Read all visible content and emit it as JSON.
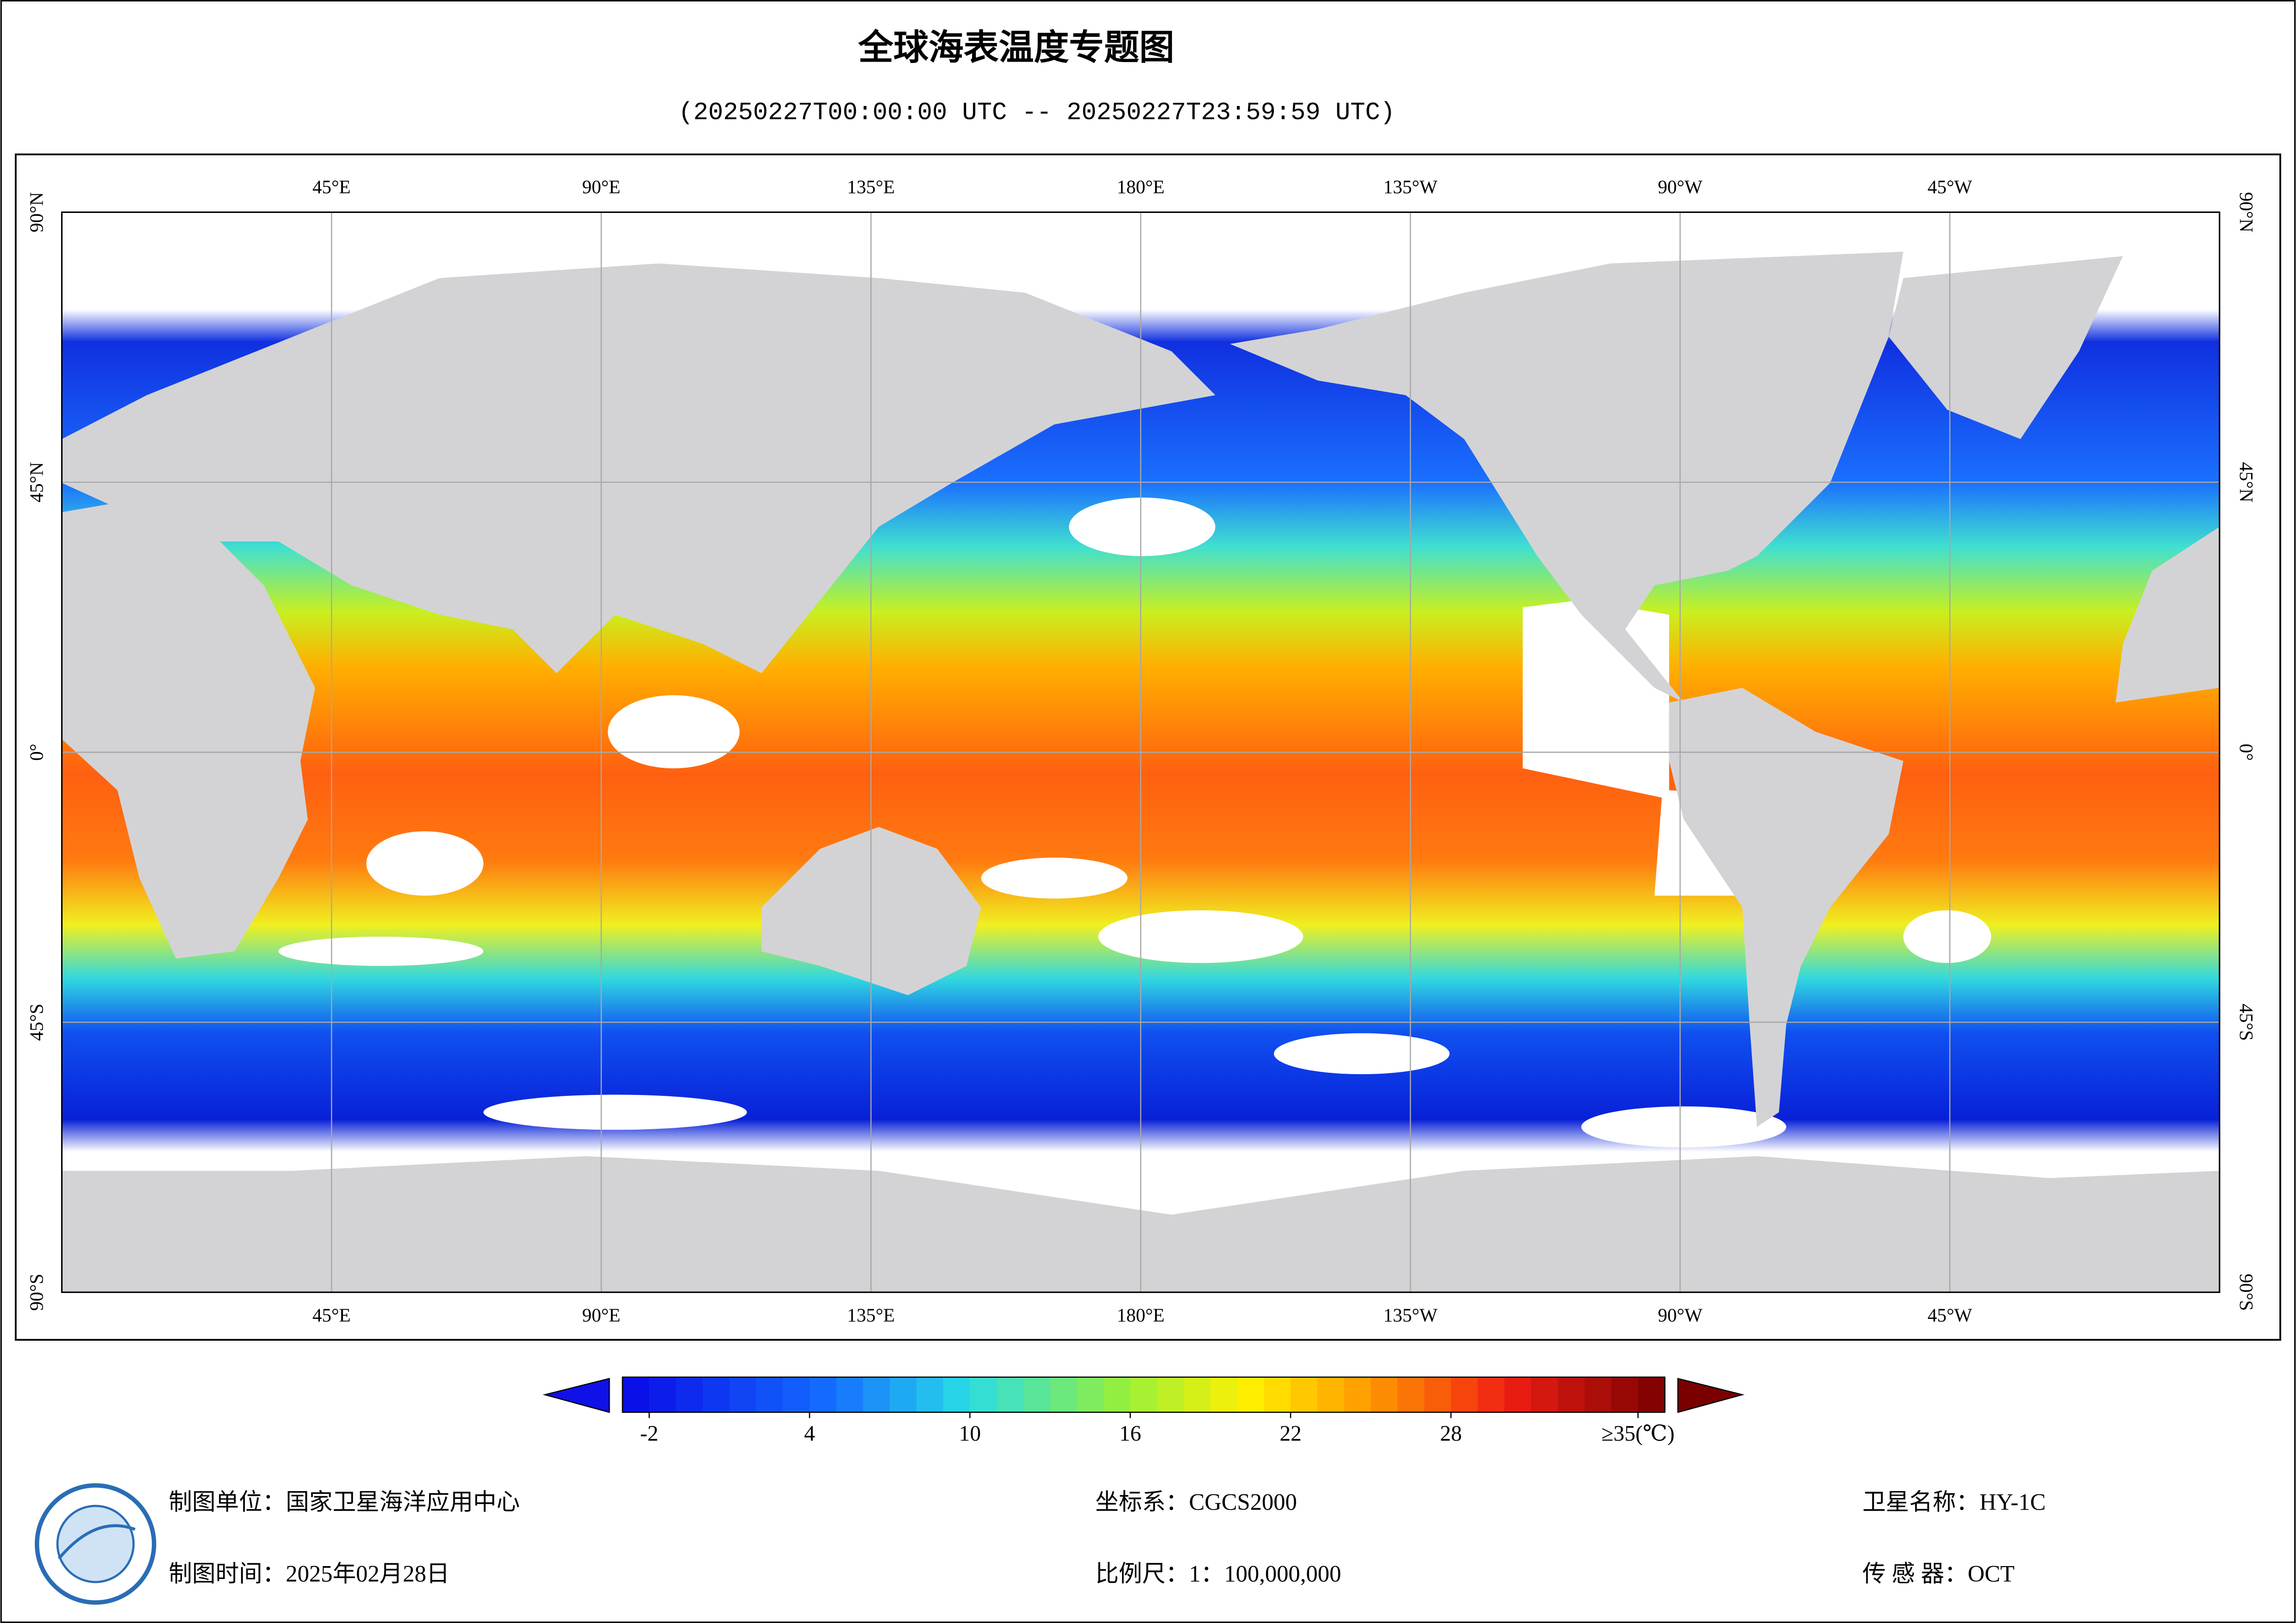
{
  "header": {
    "title": "全球海表温度专题图",
    "subtitle": "(20250227T00:00:00 UTC -- 20250227T23:59:59 UTC)"
  },
  "map": {
    "lon_labels": [
      "45°E",
      "90°E",
      "135°E",
      "180°E",
      "135°W",
      "90°W",
      "45°W"
    ],
    "lat_labels": [
      "90°N",
      "45°N",
      "0°",
      "45°S",
      "90°S"
    ]
  },
  "colorbar": {
    "range": [
      -3,
      36
    ],
    "ticks": [
      -2,
      4,
      10,
      16,
      22,
      28,
      {
        "value": 35,
        "label": "≥35(℃)"
      }
    ]
  },
  "footer": {
    "unit": "制图单位：国家卫星海洋应用中心",
    "date": "制图时间：2025年02月28日",
    "crs": "坐标系：CGCS2000",
    "scale": "比例尺：1：100,000,000",
    "satellite": "卫星名称：HY-1C",
    "sensor": "传 感 器：OCT"
  }
}
